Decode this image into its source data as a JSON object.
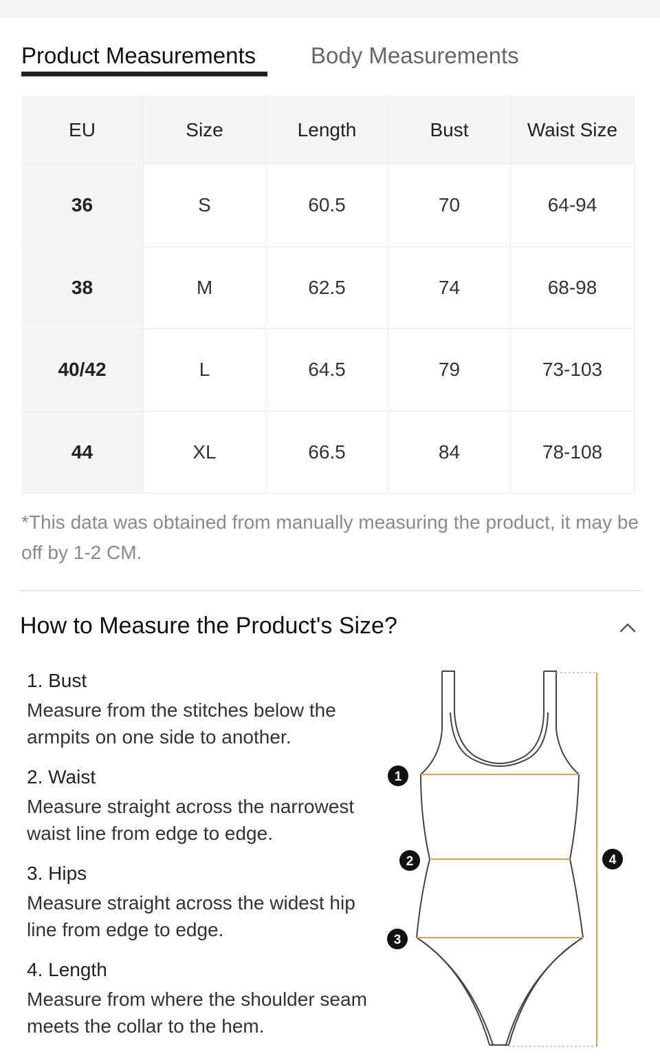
{
  "tabs": {
    "product": "Product Measurements",
    "body": "Body Measurements"
  },
  "table": {
    "headers": [
      "EU",
      "Size",
      "Length",
      "Bust",
      "Waist Size"
    ],
    "rows": [
      [
        "36",
        "S",
        "60.5",
        "70",
        "64-94"
      ],
      [
        "38",
        "M",
        "62.5",
        "74",
        "68-98"
      ],
      [
        "40/42",
        "L",
        "64.5",
        "79",
        "73-103"
      ],
      [
        "44",
        "XL",
        "66.5",
        "84",
        "78-108"
      ]
    ]
  },
  "note": "*This data was obtained from manually measuring the product, it may be off by 1-2 CM.",
  "howto": {
    "title": "How to Measure the Product's Size?",
    "steps": [
      {
        "title": "1. Bust",
        "desc": "Measure from the stitches below the armpits on one side to another."
      },
      {
        "title": "2. Waist",
        "desc": "Measure straight across the narrowest waist line from edge to edge."
      },
      {
        "title": "3. Hips",
        "desc": "Measure straight across the widest hip line from edge to edge."
      },
      {
        "title": "4. Length",
        "desc": "Measure from where the shoulder seam meets the collar to the hem."
      }
    ]
  },
  "diagram": {
    "markers": [
      "1",
      "2",
      "3",
      "4"
    ],
    "measure_line_color": "#e0a050",
    "outline_color": "#444444"
  },
  "icons": {
    "collapse": "chevron-up-icon"
  }
}
